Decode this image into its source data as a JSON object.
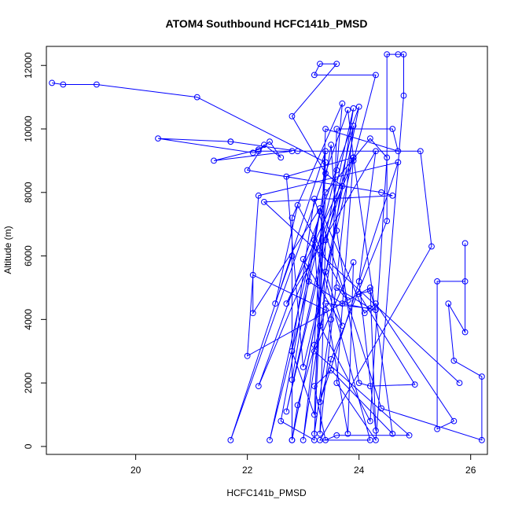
{
  "chart_data": {
    "type": "line",
    "title": "ATOM4 Southbound HCFC141b_PMSD",
    "xlabel": "HCFC141b_PMSD",
    "ylabel": "Altitude (m)",
    "xlim": [
      18.4,
      26.3
    ],
    "ylim": [
      -250,
      12600
    ],
    "xticks": [
      20,
      22,
      24,
      26
    ],
    "yticks": [
      0,
      2000,
      4000,
      6000,
      8000,
      10000,
      12000
    ],
    "grid": false,
    "legend": "none",
    "marker": "open-circle",
    "series_color": "#0000ff",
    "series": [
      {
        "values": [
          [
            18.5,
            11450
          ],
          [
            18.7,
            11400
          ],
          [
            19.3,
            11400
          ],
          [
            21.1,
            11000
          ],
          [
            23.4,
            8950
          ],
          [
            23.2,
            200
          ],
          [
            22.6,
            800
          ],
          [
            23.3,
            7400
          ],
          [
            22.4,
            200
          ],
          [
            23.6,
            8700
          ],
          [
            23.7,
            10800
          ],
          [
            22.8,
            7200
          ],
          [
            22.8,
            200
          ],
          [
            24.0,
            10700
          ],
          [
            22.2,
            1900
          ],
          [
            23.9,
            9000
          ],
          [
            24.3,
            11700
          ],
          [
            23.2,
            11700
          ],
          [
            23.3,
            12050
          ],
          [
            23.6,
            12050
          ],
          [
            22.8,
            10400
          ],
          [
            23.4,
            8600
          ],
          [
            23.7,
            8200
          ],
          [
            23.4,
            6500
          ],
          [
            23.3,
            400
          ],
          [
            23.9,
            10100
          ],
          [
            22.7,
            1100
          ],
          [
            23.9,
            10650
          ],
          [
            23.0,
            200
          ],
          [
            23.2,
            3200
          ],
          [
            23.4,
            9300
          ],
          [
            21.7,
            200
          ],
          [
            23.8,
            10600
          ],
          [
            23.9,
            9100
          ],
          [
            22.7,
            8500
          ],
          [
            23.0,
            2500
          ],
          [
            23.9,
            9100
          ],
          [
            22.7,
            4500
          ],
          [
            24.3,
            9300
          ],
          [
            24.0,
            5200
          ],
          [
            24.3,
            500
          ],
          [
            24.2,
            5000
          ],
          [
            22.0,
            2850
          ],
          [
            22.2,
            7900
          ],
          [
            24.7,
            8950
          ],
          [
            23.3,
            1400
          ],
          [
            23.5,
            2750
          ],
          [
            24.5,
            7100
          ],
          [
            24.5,
            12350
          ],
          [
            24.7,
            12350
          ],
          [
            24.8,
            12350
          ],
          [
            24.8,
            11050
          ],
          [
            24.3,
            200
          ],
          [
            23.6,
            2000
          ],
          [
            23.9,
            9100
          ],
          [
            24.6,
            400
          ],
          [
            23.5,
            2400
          ],
          [
            23.2,
            1900
          ],
          [
            23.4,
            200
          ],
          [
            23.6,
            350
          ],
          [
            24.9,
            350
          ],
          [
            23.2,
            3000
          ],
          [
            23.9,
            5800
          ],
          [
            23.8,
            400
          ],
          [
            23.4,
            4500
          ],
          [
            24.2,
            4350
          ],
          [
            23.6,
            5000
          ],
          [
            23.8,
            4600
          ],
          [
            22.9,
            7600
          ],
          [
            22.5,
            4500
          ],
          [
            22.8,
            6000
          ],
          [
            22.8,
            2100
          ],
          [
            23.5,
            9500
          ],
          [
            23.6,
            6800
          ],
          [
            24.0,
            2000
          ],
          [
            24.2,
            1900
          ],
          [
            25.0,
            1950
          ],
          [
            24.0,
            4800
          ],
          [
            24.2,
            4900
          ],
          [
            24.3,
            4300
          ],
          [
            23.7,
            4500
          ],
          [
            23.1,
            5200
          ],
          [
            23.0,
            5900
          ],
          [
            23.7,
            3800
          ],
          [
            23.4,
            5500
          ],
          [
            22.8,
            200
          ],
          [
            22.9,
            1300
          ],
          [
            23.4,
            4300
          ],
          [
            22.1,
            5400
          ],
          [
            22.1,
            4200
          ],
          [
            23.3,
            7500
          ],
          [
            24.1,
            4200
          ],
          [
            24.3,
            4500
          ],
          [
            25.7,
            800
          ],
          [
            25.4,
            550
          ],
          [
            25.4,
            5200
          ],
          [
            25.9,
            5200
          ],
          [
            25.9,
            6400
          ],
          [
            25.9,
            3600
          ],
          [
            25.6,
            4500
          ],
          [
            25.7,
            2700
          ],
          [
            26.2,
            2200
          ],
          [
            26.2,
            200
          ],
          [
            24.4,
            1200
          ],
          [
            23.2,
            7800
          ],
          [
            22.8,
            3000
          ],
          [
            23.2,
            1000
          ],
          [
            23.4,
            10000
          ],
          [
            24.7,
            9300
          ],
          [
            24.6,
            10000
          ],
          [
            23.6,
            10000
          ],
          [
            23.5,
            4000
          ],
          [
            23.2,
            400
          ],
          [
            23.4,
            8000
          ],
          [
            24.2,
            9700
          ],
          [
            24.5,
            9100
          ],
          [
            24.2,
            800
          ],
          [
            23.3,
            3800
          ],
          [
            23.2,
            6500
          ],
          [
            24.2,
            200
          ],
          [
            23.3,
            200
          ],
          [
            25.3,
            6300
          ],
          [
            25.1,
            9300
          ],
          [
            22.9,
            9300
          ],
          [
            21.7,
            9600
          ],
          [
            21.7,
            9600
          ],
          [
            20.4,
            9700
          ],
          [
            22.1,
            9250
          ],
          [
            22.2,
            9300
          ],
          [
            22.8,
            9300
          ],
          [
            21.4,
            9000
          ],
          [
            22.2,
            9350
          ],
          [
            22.4,
            9600
          ],
          [
            22.6,
            9100
          ],
          [
            22.3,
            9500
          ],
          [
            22.0,
            8700
          ],
          [
            24.4,
            8000
          ],
          [
            24.6,
            7900
          ],
          [
            22.3,
            7700
          ],
          [
            25.8,
            2000
          ]
        ]
      }
    ]
  }
}
